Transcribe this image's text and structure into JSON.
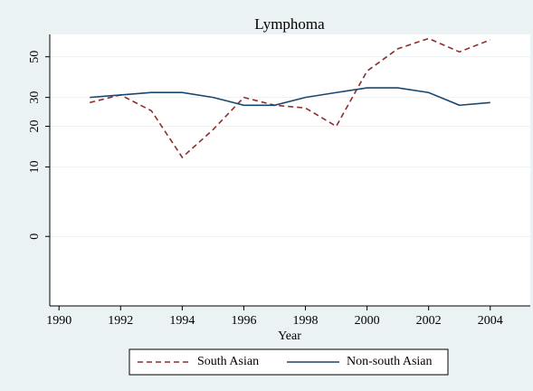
{
  "chart_data": {
    "type": "line",
    "title": "Lymphoma",
    "x_label": "Year",
    "x": [
      1991,
      1992,
      1993,
      1994,
      1995,
      1996,
      1997,
      1998,
      1999,
      2000,
      2001,
      2002,
      2003,
      2004
    ],
    "series": [
      {
        "name": "South Asian",
        "color": "#8b2e2e",
        "dash": true,
        "values": [
          28,
          31,
          25,
          12,
          19,
          30,
          27,
          26,
          20,
          42,
          55,
          62,
          53,
          61
        ]
      },
      {
        "name": "Non-south Asian",
        "color": "#1a476f",
        "dash": false,
        "values": [
          30,
          31,
          32,
          32,
          30,
          27,
          27,
          30,
          32,
          34,
          34,
          32,
          27,
          28
        ]
      }
    ],
    "xlim": [
      1989.7,
      2005.3
    ],
    "xticks": [
      1990,
      1992,
      1994,
      1996,
      1998,
      2000,
      2002,
      2004
    ],
    "ylim": [
      -5,
      65
    ],
    "yticks": [
      0,
      10,
      20,
      30,
      50
    ],
    "grid": true,
    "legend": "bottom"
  }
}
